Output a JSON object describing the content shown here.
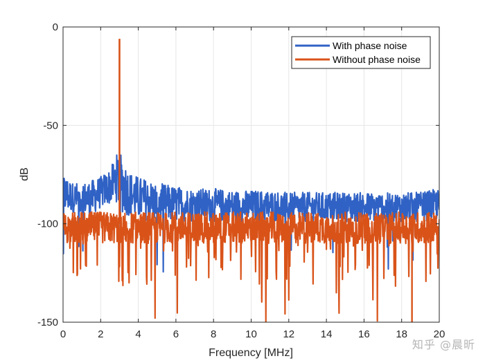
{
  "chart_data": {
    "type": "line",
    "xlabel": "Frequency [MHz]",
    "ylabel": "dB",
    "xlim": [
      0,
      20
    ],
    "ylim": [
      -150,
      0
    ],
    "xticks": [
      "0",
      "2",
      "4",
      "6",
      "8",
      "10",
      "12",
      "14",
      "16",
      "18",
      "20"
    ],
    "yticks": [
      "0",
      "-50",
      "-100",
      "-150"
    ],
    "grid": true,
    "legend_position": "top-right",
    "series": [
      {
        "name": "With phase noise",
        "color": "#3062c5",
        "x": [
          0,
          0.5,
          1,
          1.5,
          2,
          2.5,
          2.8,
          3,
          3.2,
          3.5,
          4,
          5,
          6,
          7,
          8,
          9,
          10,
          11,
          12,
          13,
          14,
          15,
          16,
          17,
          18,
          19,
          20
        ],
        "upper": [
          -74,
          -79,
          -79,
          -78,
          -76,
          -72,
          -66,
          -61,
          -66,
          -73,
          -76,
          -79,
          -81,
          -82,
          -82,
          -83,
          -83,
          -83,
          -84,
          -84,
          -84,
          -84,
          -84,
          -84,
          -84,
          -84,
          -82
        ],
        "lower": [
          -95,
          -94,
          -95,
          -96,
          -92,
          -90,
          -88,
          -93,
          -95,
          -96,
          -98,
          -99,
          -99,
          -99,
          -99,
          -99,
          -99,
          -99,
          -99,
          -99,
          -99,
          -99,
          -99,
          -99,
          -99,
          -99,
          -98
        ],
        "peak": {
          "x": 3.0,
          "y": -61
        }
      },
      {
        "name": "Without phase noise",
        "color": "#d95319",
        "x": [
          0,
          2,
          3,
          4,
          6,
          8,
          10,
          12,
          14,
          16,
          18,
          20
        ],
        "upper": [
          -94,
          -94,
          -94,
          -94,
          -94,
          -94,
          -94,
          -94,
          -94,
          -94,
          -94,
          -94
        ],
        "lower": [
          -110,
          -110,
          -110,
          -110,
          -110,
          -110,
          -110,
          -110,
          -110,
          -110,
          -110,
          -110
        ],
        "peak": {
          "x": 3.0,
          "y": -6
        }
      }
    ]
  },
  "watermark": "知乎 @晨昕"
}
